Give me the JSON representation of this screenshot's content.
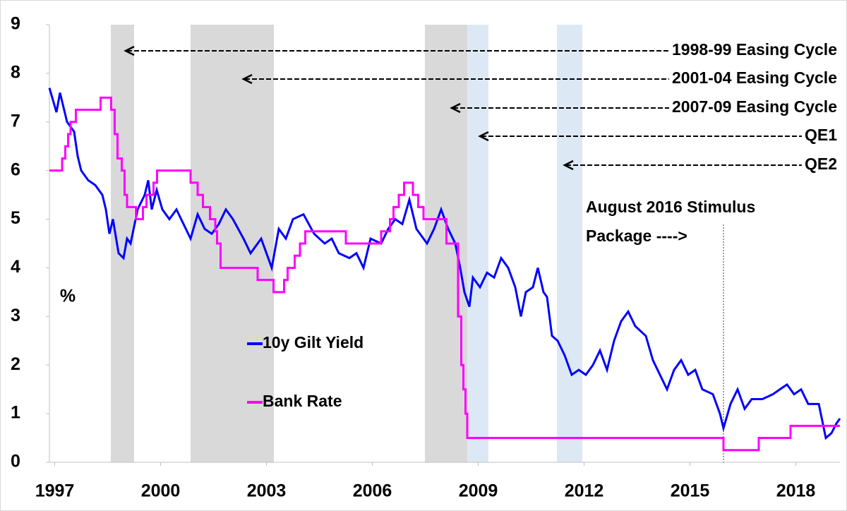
{
  "chart_data": {
    "type": "line",
    "y_label": "%",
    "xlim": [
      1996.85,
      2019.25
    ],
    "xticks": [
      1997,
      2000,
      2003,
      2006,
      2009,
      2012,
      2015,
      2018
    ],
    "ylim": [
      0,
      9
    ],
    "yticks": [
      0,
      1,
      2,
      3,
      4,
      5,
      6,
      7,
      8,
      9
    ],
    "shaded_regions": [
      {
        "start": 1998.59,
        "end": 1999.25,
        "color": "#d9d9d9"
      },
      {
        "start": 2000.85,
        "end": 2003.21,
        "color": "#d9d9d9"
      },
      {
        "start": 2007.49,
        "end": 2008.69,
        "color": "#d9d9d9"
      },
      {
        "start": 2008.69,
        "end": 2009.29,
        "color": "#dce9f5"
      },
      {
        "start": 2011.23,
        "end": 2011.95,
        "color": "#dce9f5"
      }
    ],
    "annotations": [
      "1998-99 Easing Cycle",
      "2001-04 Easing Cycle",
      "2007-09 Easing Cycle",
      "QE1",
      "QE2"
    ],
    "event": {
      "x": 2015.95,
      "lines": [
        "August 2016 Stimulus",
        "Package ---->"
      ]
    },
    "series": [
      {
        "name": "10y Gilt Yield",
        "color": "#0000ff",
        "x": [
          1996.85,
          1997.05,
          1997.15,
          1997.35,
          1997.55,
          1997.65,
          1997.75,
          1997.95,
          1998.15,
          1998.35,
          1998.45,
          1998.55,
          1998.65,
          1998.81,
          1998.95,
          1999.05,
          1999.15,
          1999.35,
          1999.55,
          1999.65,
          1999.75,
          1999.89,
          2000.05,
          2000.25,
          2000.45,
          2000.65,
          2000.85,
          2001.05,
          2001.25,
          2001.45,
          2001.65,
          2001.85,
          2002.05,
          2002.35,
          2002.55,
          2002.85,
          2003.15,
          2003.35,
          2003.55,
          2003.75,
          2004.05,
          2004.35,
          2004.65,
          2004.85,
          2005.05,
          2005.35,
          2005.55,
          2005.75,
          2005.95,
          2006.25,
          2006.45,
          2006.65,
          2006.85,
          2007.05,
          2007.25,
          2007.55,
          2007.75,
          2007.95,
          2008.15,
          2008.35,
          2008.49,
          2008.61,
          2008.75,
          2008.85,
          2009.05,
          2009.25,
          2009.45,
          2009.65,
          2009.85,
          2010.05,
          2010.21,
          2010.35,
          2010.55,
          2010.69,
          2010.85,
          2010.95,
          2011.09,
          2011.25,
          2011.45,
          2011.65,
          2011.85,
          2012.05,
          2012.25,
          2012.45,
          2012.65,
          2012.85,
          2013.05,
          2013.25,
          2013.45,
          2013.75,
          2013.95,
          2014.15,
          2014.35,
          2014.55,
          2014.75,
          2014.95,
          2015.15,
          2015.35,
          2015.65,
          2015.85,
          2015.95,
          2016.15,
          2016.35,
          2016.55,
          2016.75,
          2017.05,
          2017.35,
          2017.55,
          2017.75,
          2017.95,
          2018.15,
          2018.35,
          2018.65,
          2018.85,
          2019.01,
          2019.15,
          2019.25
        ],
        "values": [
          7.7,
          7.2,
          7.6,
          7.0,
          6.8,
          6.3,
          6.0,
          5.8,
          5.7,
          5.5,
          5.2,
          4.7,
          5.0,
          4.3,
          4.2,
          4.6,
          4.5,
          5.2,
          5.5,
          5.8,
          5.2,
          5.6,
          5.2,
          5.0,
          5.2,
          4.9,
          4.6,
          5.1,
          4.8,
          4.7,
          4.9,
          5.2,
          5.0,
          4.6,
          4.3,
          4.6,
          4.0,
          4.8,
          4.6,
          5.0,
          5.1,
          4.7,
          4.5,
          4.6,
          4.3,
          4.2,
          4.3,
          4.0,
          4.6,
          4.5,
          4.8,
          5.0,
          4.9,
          5.4,
          4.8,
          4.5,
          4.8,
          5.2,
          4.8,
          4.5,
          4.0,
          3.5,
          3.2,
          3.8,
          3.6,
          3.9,
          3.8,
          4.2,
          4.0,
          3.6,
          3.0,
          3.5,
          3.6,
          4.0,
          3.5,
          3.4,
          2.6,
          2.5,
          2.2,
          1.8,
          1.9,
          1.8,
          2.0,
          2.3,
          1.9,
          2.5,
          2.9,
          3.1,
          2.8,
          2.6,
          2.1,
          1.8,
          1.5,
          1.9,
          2.1,
          1.8,
          1.9,
          1.5,
          1.4,
          1.0,
          0.7,
          1.2,
          1.5,
          1.1,
          1.3,
          1.3,
          1.4,
          1.5,
          1.6,
          1.4,
          1.5,
          1.2,
          1.2,
          0.5,
          0.6,
          0.8,
          0.9
        ]
      },
      {
        "name": "Bank Rate",
        "color": "#ff00ff",
        "x": [
          1996.85,
          1997.21,
          1997.21,
          1997.3,
          1997.3,
          1997.38,
          1997.38,
          1997.45,
          1997.45,
          1997.6,
          1997.6,
          1998.3,
          1998.3,
          1998.6,
          1998.6,
          1998.7,
          1998.7,
          1998.78,
          1998.78,
          1998.9,
          1998.9,
          1998.98,
          1998.98,
          1999.05,
          1999.05,
          1999.3,
          1999.3,
          1999.5,
          1999.5,
          1999.6,
          1999.6,
          1999.8,
          1999.8,
          1999.9,
          1999.9,
          2000.85,
          2000.85,
          2001.05,
          2001.05,
          2001.2,
          2001.2,
          2001.4,
          2001.4,
          2001.55,
          2001.55,
          2001.6,
          2001.6,
          2001.7,
          2001.7,
          2002.75,
          2002.75,
          2003.2,
          2003.2,
          2003.5,
          2003.5,
          2003.6,
          2003.6,
          2003.8,
          2003.8,
          2003.95,
          2003.95,
          2004.1,
          2004.1,
          2005.25,
          2005.25,
          2006.25,
          2006.25,
          2006.5,
          2006.5,
          2006.6,
          2006.6,
          2006.75,
          2006.75,
          2006.9,
          2006.9,
          2007.15,
          2007.15,
          2007.3,
          2007.3,
          2007.45,
          2007.45,
          2008.1,
          2008.1,
          2008.43,
          2008.43,
          2008.52,
          2008.52,
          2008.58,
          2008.58,
          2008.64,
          2008.64,
          2008.69,
          2008.69,
          2015.95,
          2015.95,
          2016.95,
          2016.95,
          2017.85,
          2017.85,
          2019.25
        ],
        "values": [
          6,
          6,
          6.25,
          6.25,
          6.5,
          6.5,
          6.75,
          6.75,
          7,
          7,
          7.25,
          7.25,
          7.5,
          7.5,
          7.25,
          7.25,
          6.75,
          6.75,
          6.25,
          6.25,
          6,
          6,
          5.5,
          5.5,
          5.25,
          5.25,
          5,
          5,
          5.25,
          5.25,
          5.5,
          5.5,
          5.75,
          5.75,
          6,
          6,
          5.75,
          5.75,
          5.5,
          5.5,
          5.25,
          5.25,
          5,
          5,
          4.75,
          4.75,
          4.5,
          4.5,
          4,
          4,
          3.75,
          3.75,
          3.5,
          3.5,
          3.75,
          3.75,
          4,
          4,
          4.25,
          4.25,
          4.5,
          4.5,
          4.75,
          4.75,
          4.5,
          4.5,
          4.75,
          4.75,
          5,
          5,
          5.25,
          5.25,
          5.5,
          5.5,
          5.75,
          5.75,
          5.5,
          5.5,
          5.25,
          5.25,
          5,
          5,
          4.5,
          4.5,
          3,
          3,
          2,
          2,
          1.5,
          1.5,
          1,
          1,
          0.5,
          0.5,
          0.25,
          0.25,
          0.5,
          0.5,
          0.75,
          0.75
        ]
      }
    ]
  }
}
